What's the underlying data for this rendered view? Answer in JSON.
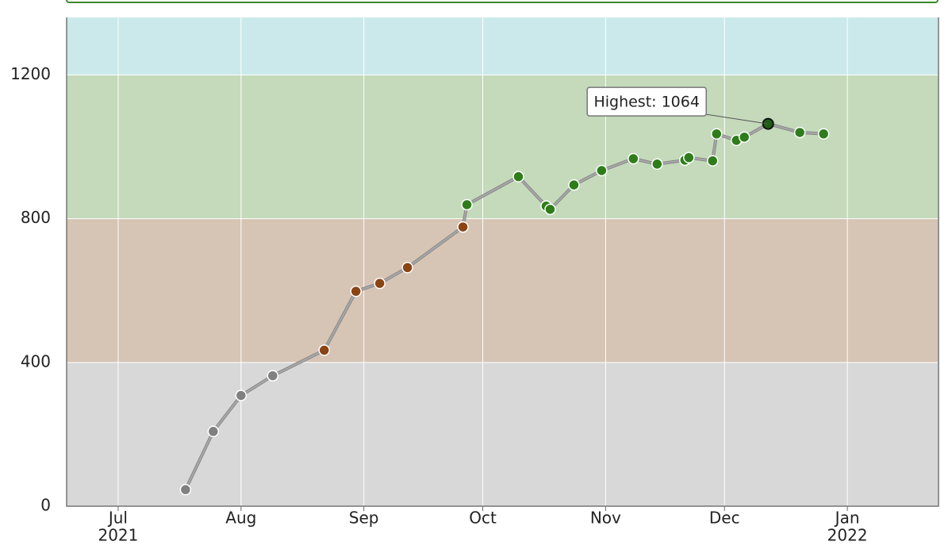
{
  "chart_data": {
    "type": "line",
    "annotation": "Highest: 1064",
    "x": [
      "2021-07-18",
      "2021-07-25",
      "2021-08-01",
      "2021-08-09",
      "2021-08-22",
      "2021-08-30",
      "2021-09-05",
      "2021-09-12",
      "2021-09-26",
      "2021-09-27",
      "2021-10-10",
      "2021-10-17",
      "2021-10-18",
      "2021-10-24",
      "2021-10-31",
      "2021-11-08",
      "2021-11-14",
      "2021-11-21",
      "2021-11-22",
      "2021-11-28",
      "2021-11-29",
      "2021-12-04",
      "2021-12-06",
      "2021-12-12",
      "2021-12-20",
      "2021-12-26"
    ],
    "values": [
      46,
      208,
      308,
      363,
      434,
      598,
      620,
      664,
      777,
      839,
      917,
      835,
      826,
      894,
      934,
      967,
      952,
      963,
      970,
      961,
      1036,
      1018,
      1027,
      1064,
      1040,
      1036
    ],
    "line_color": "#a8a8a8",
    "xlim": [
      "2021-06-18",
      "2022-01-24"
    ],
    "xticks": [
      {
        "value": "2021-07-01",
        "label": [
          "Jul",
          "2021"
        ]
      },
      {
        "value": "2021-08-01",
        "label": [
          "Aug"
        ]
      },
      {
        "value": "2021-09-01",
        "label": [
          "Sep"
        ]
      },
      {
        "value": "2021-10-01",
        "label": [
          "Oct"
        ]
      },
      {
        "value": "2021-11-01",
        "label": [
          "Nov"
        ]
      },
      {
        "value": "2021-12-01",
        "label": [
          "Dec"
        ]
      },
      {
        "value": "2022-01-01",
        "label": [
          "Jan",
          "2022"
        ]
      }
    ],
    "ylim": [
      0,
      1360
    ],
    "yticks": [
      0,
      400,
      800,
      1200
    ],
    "grid": true,
    "bands": [
      {
        "from": 0,
        "to": 400,
        "color": "#d8d8d8",
        "point_color": "#808080"
      },
      {
        "from": 400,
        "to": 800,
        "color": "#d6c4b4",
        "point_color": "#8b4513"
      },
      {
        "from": 800,
        "to": 1200,
        "color": "#c4dabb",
        "point_color": "#2e7d1a"
      },
      {
        "from": 1200,
        "to": 1360,
        "color": "#cbe9ea",
        "point_color": "#2e7d1a"
      }
    ]
  }
}
